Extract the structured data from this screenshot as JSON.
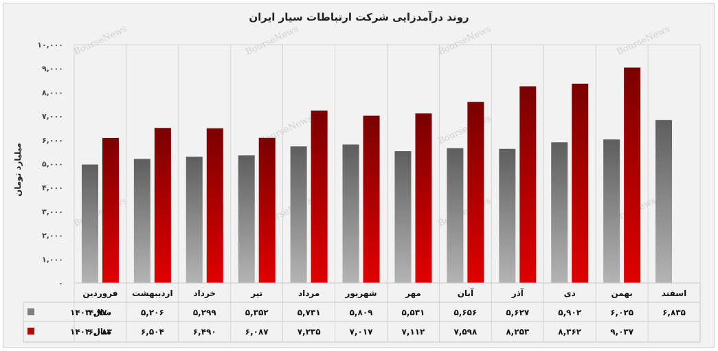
{
  "chart_data": {
    "type": "bar",
    "title": "روند درآمدزایی شرکت ارتباطات سیار ایران",
    "ylabel": "میلیارد تومان",
    "ylim": [
      0,
      10000
    ],
    "yticks": [
      0,
      1000,
      2000,
      3000,
      4000,
      5000,
      6000,
      7000,
      8000,
      9000,
      10000
    ],
    "ytick_labels": [
      "۰",
      "۱,۰۰۰",
      "۲,۰۰۰",
      "۳,۰۰۰",
      "۴,۰۰۰",
      "۵,۰۰۰",
      "۶,۰۰۰",
      "۷,۰۰۰",
      "۸,۰۰۰",
      "۹,۰۰۰",
      "۱۰,۰۰۰"
    ],
    "categories": [
      "فروردین",
      "اردیبهشت",
      "خرداد",
      "تیر",
      "مرداد",
      "شهریور",
      "مهر",
      "آبان",
      "آذر",
      "دی",
      "بهمن",
      "اسفند"
    ],
    "series": [
      {
        "name": "سال ۱۴۰۳",
        "color": "#7f7f7f",
        "values": [
          4970,
          5206,
          5299,
          5352,
          5731,
          5809,
          5531,
          5656,
          5627,
          5902,
          6025,
          6835
        ],
        "labels": [
          "۴,۹۷۰",
          "۵,۲۰۶",
          "۵,۲۹۹",
          "۵,۳۵۲",
          "۵,۷۳۱",
          "۵,۸۰۹",
          "۵,۵۳۱",
          "۵,۶۵۶",
          "۵,۶۲۷",
          "۵,۹۰۲",
          "۶,۰۲۵",
          "۶,۸۳۵"
        ]
      },
      {
        "name": "سال ۱۴۰۴",
        "color": "#c00000",
        "values": [
          6083,
          6504,
          6490,
          6087,
          7235,
          7017,
          7112,
          7598,
          8253,
          8362,
          9037,
          null
        ],
        "labels": [
          "۶,۰۸۳",
          "۶,۵۰۴",
          "۶,۴۹۰",
          "۶,۰۸۷",
          "۷,۲۳۵",
          "۷,۰۱۷",
          "۷,۱۱۲",
          "۷,۵۹۸",
          "۸,۲۵۳",
          "۸,۳۶۲",
          "۹,۰۳۷",
          ""
        ]
      }
    ],
    "grid": "vertical",
    "legend": "table-left",
    "watermark": "BourseNews"
  }
}
